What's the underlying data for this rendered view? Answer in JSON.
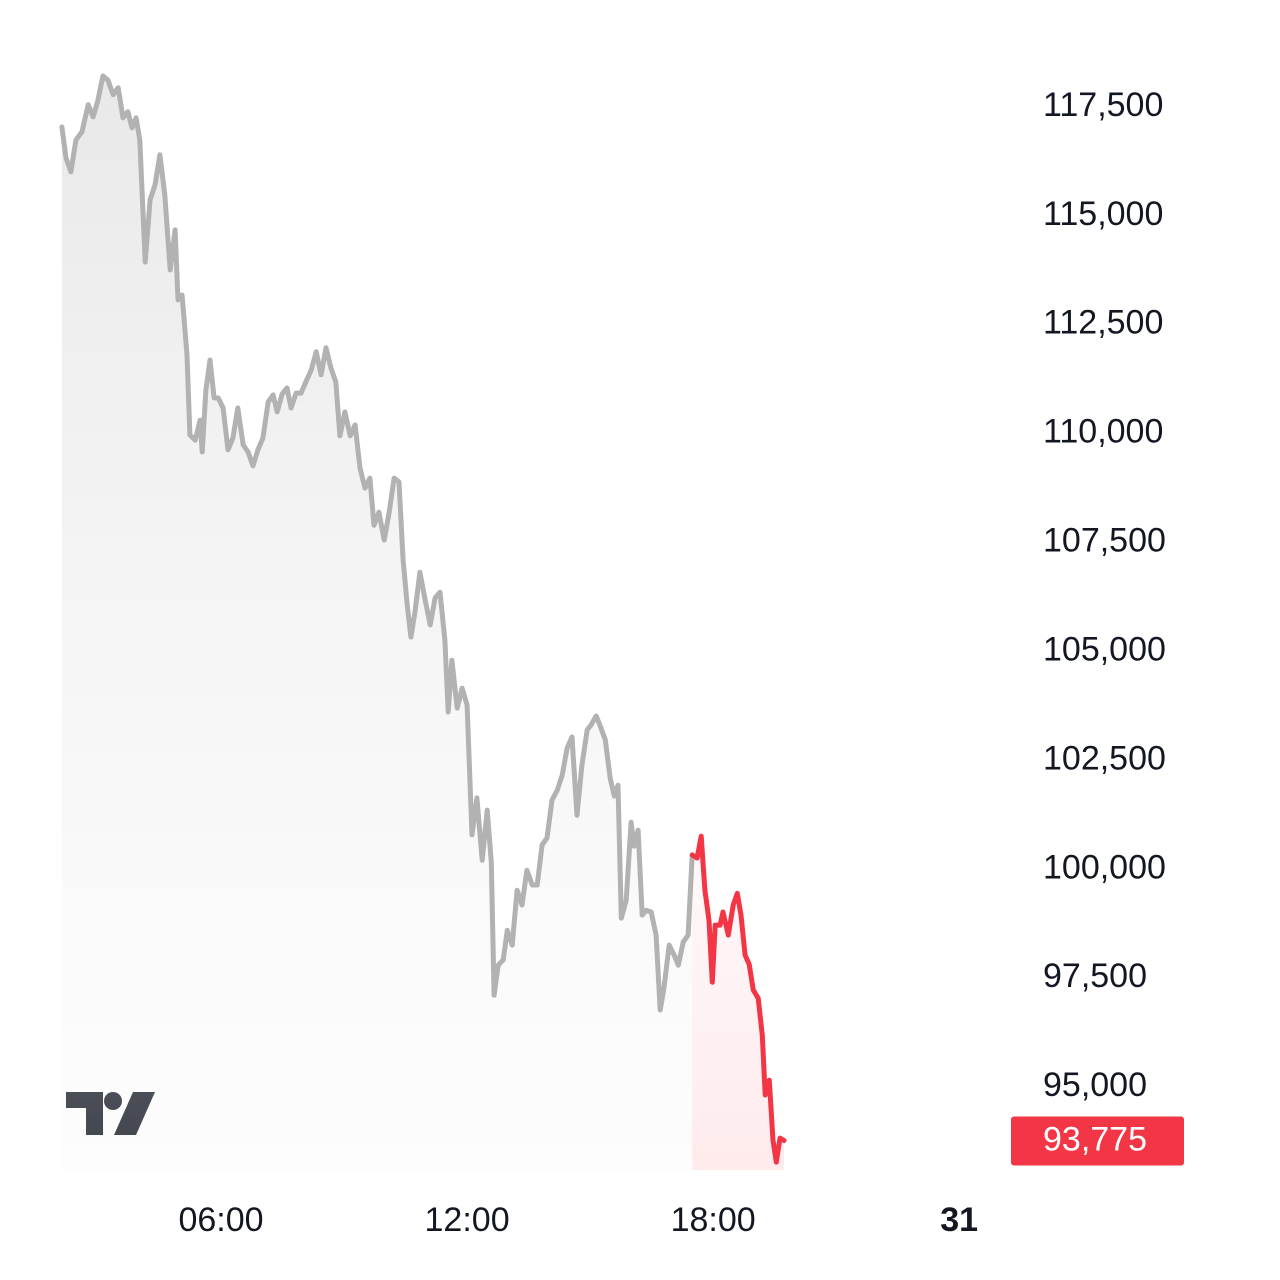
{
  "chart_data": {
    "type": "line",
    "xlim": [
      0.61,
      25.24
    ],
    "xticks": [
      {
        "value": 6,
        "label": "06:00"
      },
      {
        "value": 12,
        "label": "12:00"
      },
      {
        "value": 18,
        "label": "18:00"
      },
      {
        "value": 24,
        "label": "31",
        "bold": true
      }
    ],
    "ylim": [
      92800,
      120000
    ],
    "yticks": [
      {
        "value": 95000,
        "label": "95,000"
      },
      {
        "value": 97500,
        "label": "97,500"
      },
      {
        "value": 100000,
        "label": "100,000"
      },
      {
        "value": 102500,
        "label": "102,500"
      },
      {
        "value": 105000,
        "label": "105,000"
      },
      {
        "value": 107500,
        "label": "107,500"
      },
      {
        "value": 110000,
        "label": "110,000"
      },
      {
        "value": 112500,
        "label": "112,500"
      },
      {
        "value": 115000,
        "label": "115,000"
      },
      {
        "value": 117500,
        "label": "117,500"
      }
    ],
    "grid": false,
    "series": [
      {
        "color": "#b2b2b2",
        "x": [
          2.12,
          2.22,
          2.34,
          2.46,
          2.61,
          2.76,
          2.88,
          3.0,
          3.12,
          3.24,
          3.37,
          3.49,
          3.61,
          3.73,
          3.83,
          3.93,
          4.02,
          4.15,
          4.27,
          4.39,
          4.51,
          4.63,
          4.76,
          4.88,
          4.95,
          5.05,
          5.17,
          5.24,
          5.37,
          5.49,
          5.54,
          5.63,
          5.73,
          5.83,
          5.93,
          6.05,
          6.17,
          6.29,
          6.41,
          6.54,
          6.66,
          6.78,
          6.9,
          7.02,
          7.15,
          7.27,
          7.37,
          7.49,
          7.61,
          7.71,
          7.83,
          7.95,
          8.07,
          8.2,
          8.32,
          8.44,
          8.56,
          8.68,
          8.8,
          8.9,
          9.02,
          9.15,
          9.27,
          9.39,
          9.51,
          9.63,
          9.73,
          9.85,
          9.98,
          10.1,
          10.22,
          10.34,
          10.44,
          10.54,
          10.63,
          10.73,
          10.85,
          10.98,
          11.1,
          11.22,
          11.34,
          11.46,
          11.54,
          11.63,
          11.76,
          11.88,
          12.0,
          12.12,
          12.24,
          12.37,
          12.49,
          12.59,
          12.66,
          12.76,
          12.88,
          12.98,
          13.1,
          13.22,
          13.34,
          13.46,
          13.59,
          13.71,
          13.83,
          13.95,
          14.07,
          14.2,
          14.32,
          14.44,
          14.56,
          14.68,
          14.8,
          14.93,
          15.02,
          15.15,
          15.24,
          15.37,
          15.49,
          15.59,
          15.68,
          15.76,
          15.88,
          16.0,
          16.07,
          16.17,
          16.27,
          16.37,
          16.49,
          16.61,
          16.71,
          16.8,
          16.93,
          17.05,
          17.15,
          17.27,
          17.39,
          17.49
        ],
        "values": [
          117040,
          116330,
          116010,
          116740,
          116930,
          117550,
          117270,
          117660,
          118210,
          118120,
          117780,
          117940,
          117250,
          117390,
          117020,
          117250,
          116740,
          113940,
          115370,
          115710,
          116400,
          115480,
          113760,
          114680,
          113070,
          113180,
          111810,
          109970,
          109850,
          110310,
          109580,
          111000,
          111690,
          110820,
          110820,
          110590,
          109630,
          109900,
          110590,
          109740,
          109580,
          109260,
          109630,
          109900,
          110730,
          110890,
          110500,
          110910,
          111050,
          110590,
          110930,
          110930,
          111190,
          111460,
          111880,
          111350,
          111970,
          111510,
          111190,
          109950,
          110500,
          109950,
          110200,
          109210,
          108750,
          108980,
          107900,
          108200,
          107560,
          108200,
          108980,
          108890,
          107100,
          106070,
          105330,
          105910,
          106820,
          106180,
          105610,
          106230,
          106360,
          105260,
          103610,
          104800,
          103700,
          104160,
          103770,
          100790,
          101640,
          100210,
          101360,
          100170,
          97110,
          97800,
          97920,
          98600,
          98260,
          99520,
          99180,
          99980,
          99640,
          99640,
          100560,
          100720,
          101590,
          101820,
          102160,
          102780,
          103040,
          101240,
          102390,
          103200,
          103310,
          103520,
          103310,
          102970,
          102090,
          101680,
          101930,
          98880,
          99290,
          101080,
          100530,
          100900,
          98950,
          99060,
          99020,
          98490,
          96770,
          97270,
          98260,
          98030,
          97800,
          98330,
          98490,
          100330
        ]
      },
      {
        "color": "#f23645",
        "x": [
          17.49,
          17.61,
          17.71,
          17.8,
          17.9,
          17.98,
          18.05,
          18.17,
          18.24,
          18.37,
          18.49,
          18.59,
          18.68,
          18.78,
          18.88,
          18.98,
          19.1,
          19.2,
          19.27,
          19.37,
          19.46,
          19.54,
          19.63,
          19.73
        ],
        "values": [
          100330,
          100260,
          100760,
          99520,
          98830,
          97410,
          98720,
          98720,
          99020,
          98490,
          99180,
          99450,
          98950,
          98030,
          97820,
          97230,
          97040,
          96190,
          94820,
          95160,
          93780,
          93280,
          93830,
          93775
        ]
      }
    ],
    "last_price": {
      "value": 93775,
      "label": "93,775",
      "color": "#f23645"
    }
  }
}
